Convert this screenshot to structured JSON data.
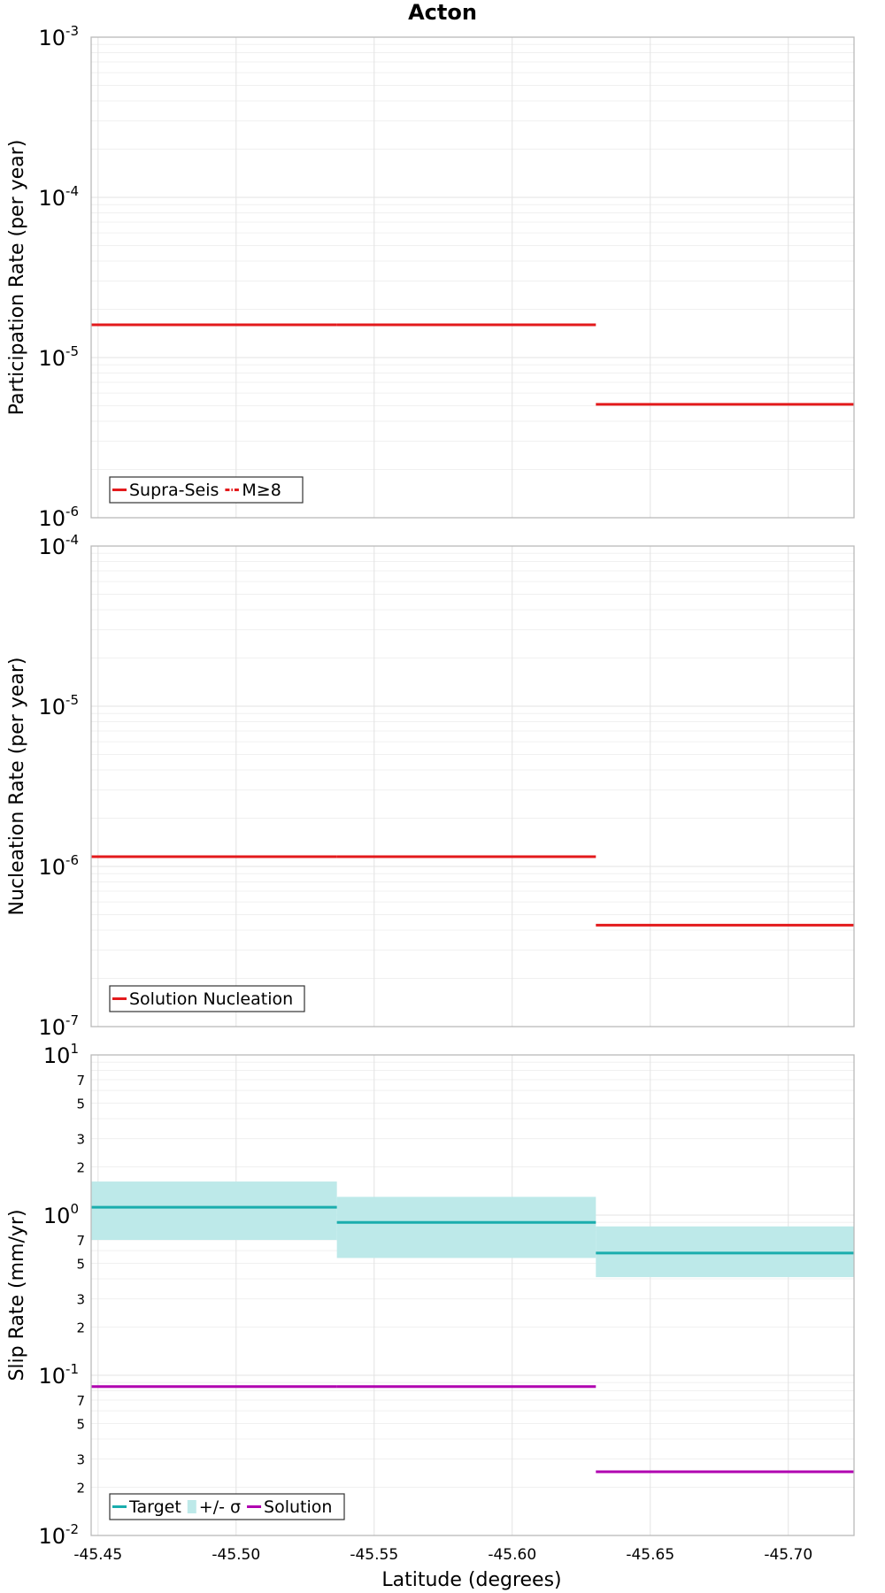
{
  "figure_title": "Acton",
  "x_axis_label": "Latitude (degrees)",
  "x_ticks": [
    -45.45,
    -45.5,
    -45.55,
    -45.6,
    -45.65,
    -45.7
  ],
  "x_tick_labels": [
    "-45.45",
    "-45.50",
    "-45.55",
    "-45.60",
    "-45.65",
    "-45.70"
  ],
  "colors": {
    "red": "#e31a1c",
    "teal": "#1aadad",
    "teal_fill": "#bde9e9",
    "magenta": "#b000b0"
  },
  "chart_data": [
    {
      "type": "line",
      "title": "Acton",
      "xlabel": "Latitude (degrees)",
      "ylabel": "Participation Rate (per year)",
      "yscale": "log",
      "ylim": [
        1e-06,
        0.001
      ],
      "xlim": [
        -45.4475,
        -45.7238
      ],
      "x_direction": "decreasing to the right",
      "grid": true,
      "legend_position": "bottom-left",
      "y_major_ticks": [
        {
          "base": "10",
          "exp": "-6"
        },
        {
          "base": "10",
          "exp": "-5"
        },
        {
          "base": "10",
          "exp": "-4"
        },
        {
          "base": "10",
          "exp": "-3"
        }
      ],
      "legend": [
        {
          "label": "Supra-Seis",
          "style": "solid",
          "color": "#e31a1c"
        },
        {
          "label": "M≥8",
          "style": "dash-dot",
          "color": "#e31a1c"
        }
      ],
      "series": [
        {
          "name": "Supra-Seis",
          "color": "#e31a1c",
          "segments": [
            {
              "x": [
                -45.4475,
                -45.5365
              ],
              "y": 1.6e-05
            },
            {
              "x": [
                -45.5365,
                -45.6303
              ],
              "y": 1.6e-05
            },
            {
              "x": [
                -45.6303,
                -45.7238
              ],
              "y": 5.1e-06
            }
          ]
        }
      ]
    },
    {
      "type": "line",
      "ylabel": "Nucleation Rate (per year)",
      "yscale": "log",
      "ylim": [
        1e-07,
        0.0001
      ],
      "xlim": [
        -45.4475,
        -45.7238
      ],
      "grid": true,
      "legend_position": "bottom-left",
      "y_major_ticks": [
        {
          "base": "10",
          "exp": "-7"
        },
        {
          "base": "10",
          "exp": "-6"
        },
        {
          "base": "10",
          "exp": "-5"
        },
        {
          "base": "10",
          "exp": "-4"
        }
      ],
      "legend": [
        {
          "label": "Solution Nucleation",
          "style": "solid",
          "color": "#e31a1c"
        }
      ],
      "series": [
        {
          "name": "Solution Nucleation",
          "color": "#e31a1c",
          "segments": [
            {
              "x": [
                -45.4475,
                -45.5365
              ],
              "y": 1.15e-06
            },
            {
              "x": [
                -45.5365,
                -45.6303
              ],
              "y": 1.15e-06
            },
            {
              "x": [
                -45.6303,
                -45.7238
              ],
              "y": 4.3e-07
            }
          ]
        }
      ]
    },
    {
      "type": "line",
      "ylabel": "Slip Rate (mm/yr)",
      "yscale": "log",
      "ylim": [
        0.01,
        10
      ],
      "xlim": [
        -45.4475,
        -45.7238
      ],
      "grid": true,
      "legend_position": "bottom-left",
      "y_major_ticks": [
        {
          "base": "10",
          "exp": "-2"
        },
        {
          "base": "10",
          "exp": "-1"
        },
        {
          "base": "10",
          "exp": "0"
        },
        {
          "base": "10",
          "exp": "1"
        }
      ],
      "y_minor_labels": [
        {
          "label": "2",
          "value": 0.02
        },
        {
          "label": "3",
          "value": 0.03
        },
        {
          "label": "5",
          "value": 0.05
        },
        {
          "label": "7",
          "value": 0.07
        },
        {
          "label": "2",
          "value": 0.2
        },
        {
          "label": "3",
          "value": 0.3
        },
        {
          "label": "5",
          "value": 0.5
        },
        {
          "label": "7",
          "value": 0.7
        },
        {
          "label": "2",
          "value": 2
        },
        {
          "label": "3",
          "value": 3
        },
        {
          "label": "5",
          "value": 5
        },
        {
          "label": "7",
          "value": 7
        }
      ],
      "legend": [
        {
          "label": "Target",
          "style": "solid",
          "color": "#1aadad"
        },
        {
          "label": "+/- σ",
          "style": "band",
          "color": "#bde9e9"
        },
        {
          "label": "Solution",
          "style": "solid",
          "color": "#b000b0"
        }
      ],
      "bands": [
        {
          "name": "+/- σ",
          "color": "#bde9e9",
          "segments": [
            {
              "x": [
                -45.4475,
                -45.5365
              ],
              "low": 0.7,
              "high": 1.62
            },
            {
              "x": [
                -45.5365,
                -45.6303
              ],
              "low": 0.54,
              "high": 1.3
            },
            {
              "x": [
                -45.6303,
                -45.7238
              ],
              "low": 0.41,
              "high": 0.85
            }
          ]
        }
      ],
      "series": [
        {
          "name": "Target",
          "color": "#1aadad",
          "segments": [
            {
              "x": [
                -45.4475,
                -45.5365
              ],
              "y": 1.12
            },
            {
              "x": [
                -45.5365,
                -45.6303
              ],
              "y": 0.9
            },
            {
              "x": [
                -45.6303,
                -45.7238
              ],
              "y": 0.58
            }
          ]
        },
        {
          "name": "Solution",
          "color": "#b000b0",
          "segments": [
            {
              "x": [
                -45.4475,
                -45.5365
              ],
              "y": 0.085
            },
            {
              "x": [
                -45.5365,
                -45.6303
              ],
              "y": 0.085
            },
            {
              "x": [
                -45.6303,
                -45.7238
              ],
              "y": 0.025
            }
          ]
        }
      ]
    }
  ]
}
